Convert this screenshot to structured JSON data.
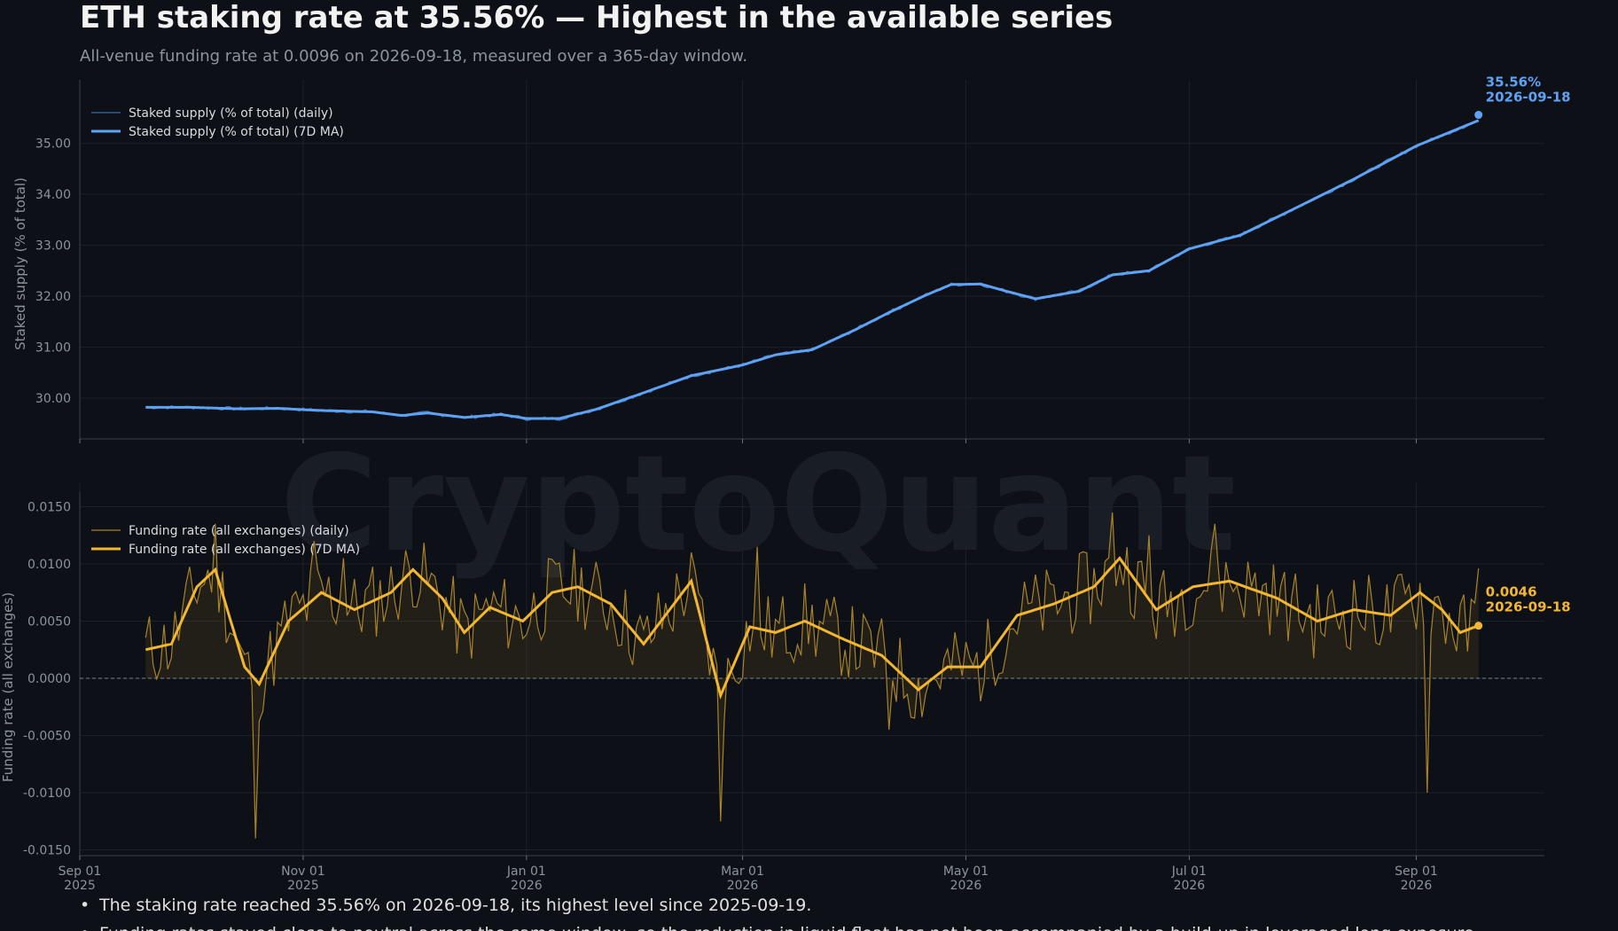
{
  "header": {
    "title": "ETH staking rate at 35.56% — Highest in the available series",
    "subtitle": "All-venue funding rate at 0.0096 on 2026-09-18, measured over a 365-day window."
  },
  "watermark": "CryptoQuant",
  "notes": [
    "The staking rate reached 35.56% on 2026-09-18, its highest level since 2025-09-19.",
    "Funding rates stayed close to neutral across the same window, so the reduction in liquid float has not been accompanied by a build-up in leveraged long exposure."
  ],
  "colors": {
    "background": "#0d1117",
    "staking": "#5ea2f5",
    "funding": "#f2b630",
    "axis_text": "#8b939c"
  },
  "chart_data": [
    {
      "type": "line",
      "ylabel": "Staked supply (% of total)",
      "yticks": [
        30.0,
        31.0,
        32.0,
        33.0,
        34.0,
        35.0
      ],
      "ylim": [
        29.2,
        35.9
      ],
      "xlim": [
        "2025-09-01",
        "2026-10-06"
      ],
      "grid": true,
      "legend_position": "top-left",
      "series": [
        {
          "name": "Staked supply (% of total) (daily)",
          "style": "thin"
        },
        {
          "name": "Staked supply (% of total) (7D MA)",
          "style": "thick"
        }
      ],
      "points": [
        [
          "2025-09-19",
          29.82
        ],
        [
          "2025-10-01",
          29.82
        ],
        [
          "2025-10-15",
          29.79
        ],
        [
          "2025-10-25",
          29.8
        ],
        [
          "2025-11-05",
          29.76
        ],
        [
          "2025-11-20",
          29.73
        ],
        [
          "2025-11-28",
          29.66
        ],
        [
          "2025-12-05",
          29.71
        ],
        [
          "2025-12-15",
          29.62
        ],
        [
          "2025-12-25",
          29.68
        ],
        [
          "2026-01-01",
          29.6
        ],
        [
          "2026-01-10",
          29.6
        ],
        [
          "2026-01-20",
          29.78
        ],
        [
          "2026-02-01",
          30.08
        ],
        [
          "2026-02-15",
          30.44
        ],
        [
          "2026-03-01",
          30.65
        ],
        [
          "2026-03-10",
          30.85
        ],
        [
          "2026-03-20",
          30.95
        ],
        [
          "2026-04-01",
          31.35
        ],
        [
          "2026-04-10",
          31.68
        ],
        [
          "2026-04-20",
          32.02
        ],
        [
          "2026-04-27",
          32.23
        ],
        [
          "2026-05-05",
          32.24
        ],
        [
          "2026-05-12",
          32.1
        ],
        [
          "2026-05-20",
          31.95
        ],
        [
          "2026-06-01",
          32.1
        ],
        [
          "2026-06-10",
          32.42
        ],
        [
          "2026-06-20",
          32.5
        ],
        [
          "2026-07-01",
          32.93
        ],
        [
          "2026-07-15",
          33.2
        ],
        [
          "2026-08-01",
          33.8
        ],
        [
          "2026-08-15",
          34.3
        ],
        [
          "2026-09-01",
          34.95
        ],
        [
          "2026-09-18",
          35.45
        ]
      ],
      "annotation": {
        "value": "35.56%",
        "date": "2026-09-18",
        "y": 35.56
      }
    },
    {
      "type": "line",
      "ylabel": "Funding rate (all exchanges)",
      "yticks": [
        -0.015,
        -0.01,
        -0.005,
        0.0,
        0.005,
        0.01,
        0.015
      ],
      "ylim": [
        -0.0155,
        0.0155
      ],
      "xlim": [
        "2025-09-01",
        "2026-10-06"
      ],
      "xticks": [
        {
          "date": "2025-09-01",
          "label": "Sep 01",
          "year": "2025"
        },
        {
          "date": "2025-11-01",
          "label": "Nov 01",
          "year": "2025"
        },
        {
          "date": "2026-01-01",
          "label": "Jan 01",
          "year": "2026"
        },
        {
          "date": "2026-03-01",
          "label": "Mar 01",
          "year": "2026"
        },
        {
          "date": "2026-05-01",
          "label": "May 01",
          "year": "2026"
        },
        {
          "date": "2026-07-01",
          "label": "Jul 01",
          "year": "2026"
        },
        {
          "date": "2026-09-01",
          "label": "Sep 01",
          "year": "2026"
        }
      ],
      "grid": true,
      "legend_position": "top-left",
      "series": [
        {
          "name": "Funding rate (all exchanges) (daily)",
          "style": "thin"
        },
        {
          "name": "Funding rate (all exchanges) (7D MA)",
          "style": "thick"
        }
      ],
      "ma_points": [
        [
          "2025-09-19",
          0.0025
        ],
        [
          "2025-09-26",
          0.003
        ],
        [
          "2025-10-03",
          0.008
        ],
        [
          "2025-10-08",
          0.0095
        ],
        [
          "2025-10-16",
          0.001
        ],
        [
          "2025-10-20",
          -0.0005
        ],
        [
          "2025-10-28",
          0.005
        ],
        [
          "2025-11-06",
          0.0075
        ],
        [
          "2025-11-15",
          0.006
        ],
        [
          "2025-11-25",
          0.0075
        ],
        [
          "2025-12-01",
          0.0095
        ],
        [
          "2025-12-09",
          0.007
        ],
        [
          "2025-12-15",
          0.004
        ],
        [
          "2025-12-22",
          0.0062
        ],
        [
          "2025-12-31",
          0.005
        ],
        [
          "2026-01-08",
          0.0075
        ],
        [
          "2026-01-15",
          0.008
        ],
        [
          "2026-01-24",
          0.0065
        ],
        [
          "2026-02-02",
          0.003
        ],
        [
          "2026-02-15",
          0.0085
        ],
        [
          "2026-02-23",
          -0.0015
        ],
        [
          "2026-03-03",
          0.0045
        ],
        [
          "2026-03-10",
          0.004
        ],
        [
          "2026-03-18",
          0.005
        ],
        [
          "2026-03-28",
          0.0035
        ],
        [
          "2026-04-08",
          0.002
        ],
        [
          "2026-04-18",
          -0.001
        ],
        [
          "2026-04-26",
          0.001
        ],
        [
          "2026-05-05",
          0.001
        ],
        [
          "2026-05-15",
          0.0055
        ],
        [
          "2026-05-25",
          0.0065
        ],
        [
          "2026-06-05",
          0.008
        ],
        [
          "2026-06-12",
          0.0105
        ],
        [
          "2026-06-22",
          0.006
        ],
        [
          "2026-07-02",
          0.008
        ],
        [
          "2026-07-12",
          0.0085
        ],
        [
          "2026-07-25",
          0.007
        ],
        [
          "2026-08-05",
          0.005
        ],
        [
          "2026-08-15",
          0.006
        ],
        [
          "2026-08-25",
          0.0055
        ],
        [
          "2026-09-02",
          0.0075
        ],
        [
          "2026-09-08",
          0.006
        ],
        [
          "2026-09-13",
          0.004
        ],
        [
          "2026-09-18",
          0.0046
        ]
      ],
      "daily_spikes": [
        [
          "2025-10-08",
          0.0135
        ],
        [
          "2025-10-19",
          -0.014
        ],
        [
          "2025-11-04",
          0.012
        ],
        [
          "2025-11-12",
          0.0105
        ],
        [
          "2026-02-15",
          0.011
        ],
        [
          "2026-02-23",
          -0.0125
        ],
        [
          "2026-03-05",
          0.0115
        ],
        [
          "2026-04-10",
          -0.0045
        ],
        [
          "2026-06-10",
          0.0145
        ],
        [
          "2026-06-20",
          0.0125
        ],
        [
          "2026-07-08",
          0.0135
        ],
        [
          "2026-09-04",
          -0.01
        ],
        [
          "2026-09-18",
          0.0096
        ]
      ],
      "annotation": {
        "value": "0.0046",
        "date": "2026-09-18",
        "y": 0.0046
      }
    }
  ]
}
